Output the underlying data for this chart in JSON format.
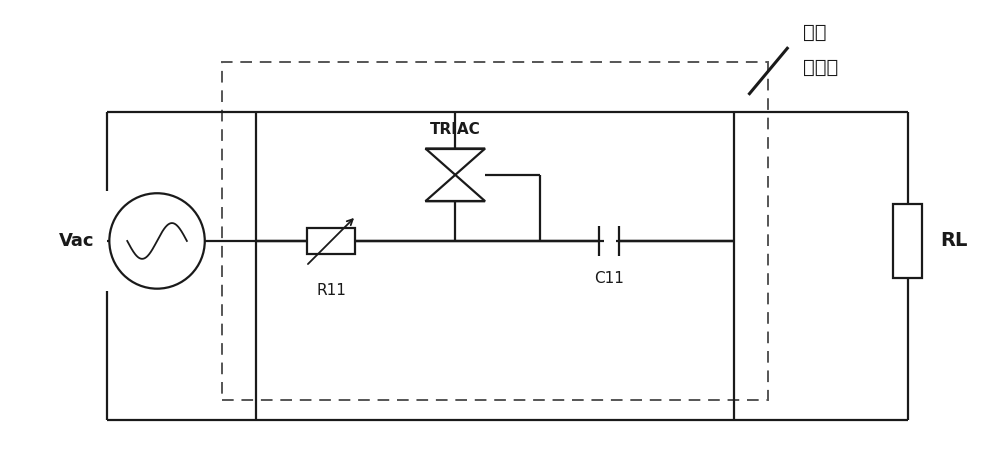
{
  "bg_color": "#ffffff",
  "line_color": "#1a1a1a",
  "dashed_color": "#555555",
  "fig_width": 10.0,
  "fig_height": 4.66,
  "dpi": 100,
  "labels": {
    "Vac": "Vac",
    "TRIAC": "TRIAC",
    "R11": "R11",
    "C11": "C11",
    "RL": "RL",
    "chinese1": "斩波",
    "chinese2": "调光器"
  }
}
